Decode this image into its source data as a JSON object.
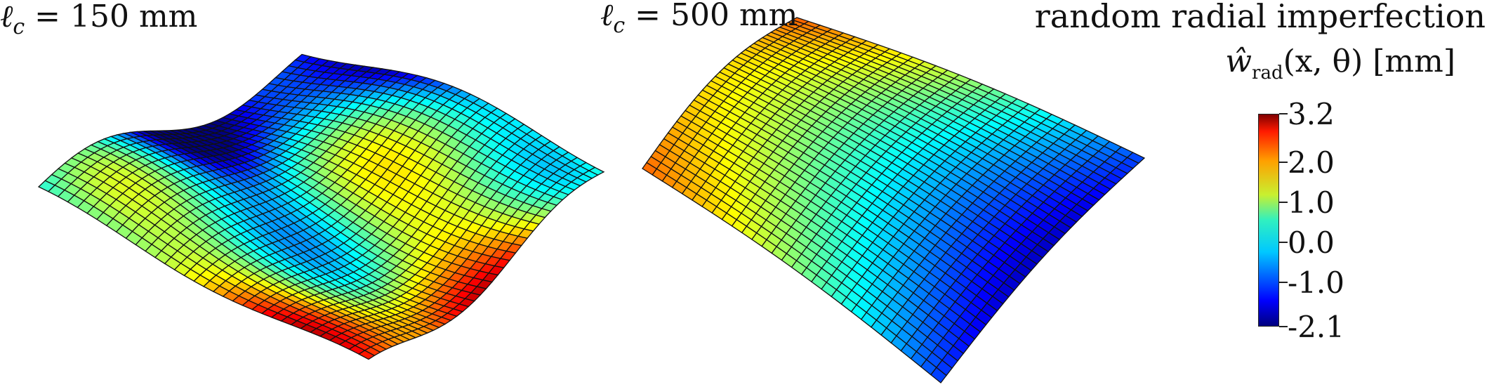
{
  "panels": [
    {
      "label_symbol": "ℓ",
      "label_sub": "c",
      "label_rest": " = 150 mm"
    },
    {
      "label_symbol": "ℓ",
      "label_sub": "c",
      "label_rest": " = 500 mm"
    }
  ],
  "colorbar": {
    "title": "random radial imperfection",
    "quantity_symbol": "ŵ",
    "quantity_sub": "rad",
    "quantity_args": "(x, θ) [mm]",
    "ticks": [
      "3.2",
      "2.0",
      "1.0",
      "0.0",
      "-1.0",
      "-2.1"
    ],
    "tick_values": [
      3.2,
      2.0,
      1.0,
      0.0,
      -1.0,
      -2.1
    ],
    "min": -2.1,
    "max": 3.2,
    "colormap": "jet"
  }
}
